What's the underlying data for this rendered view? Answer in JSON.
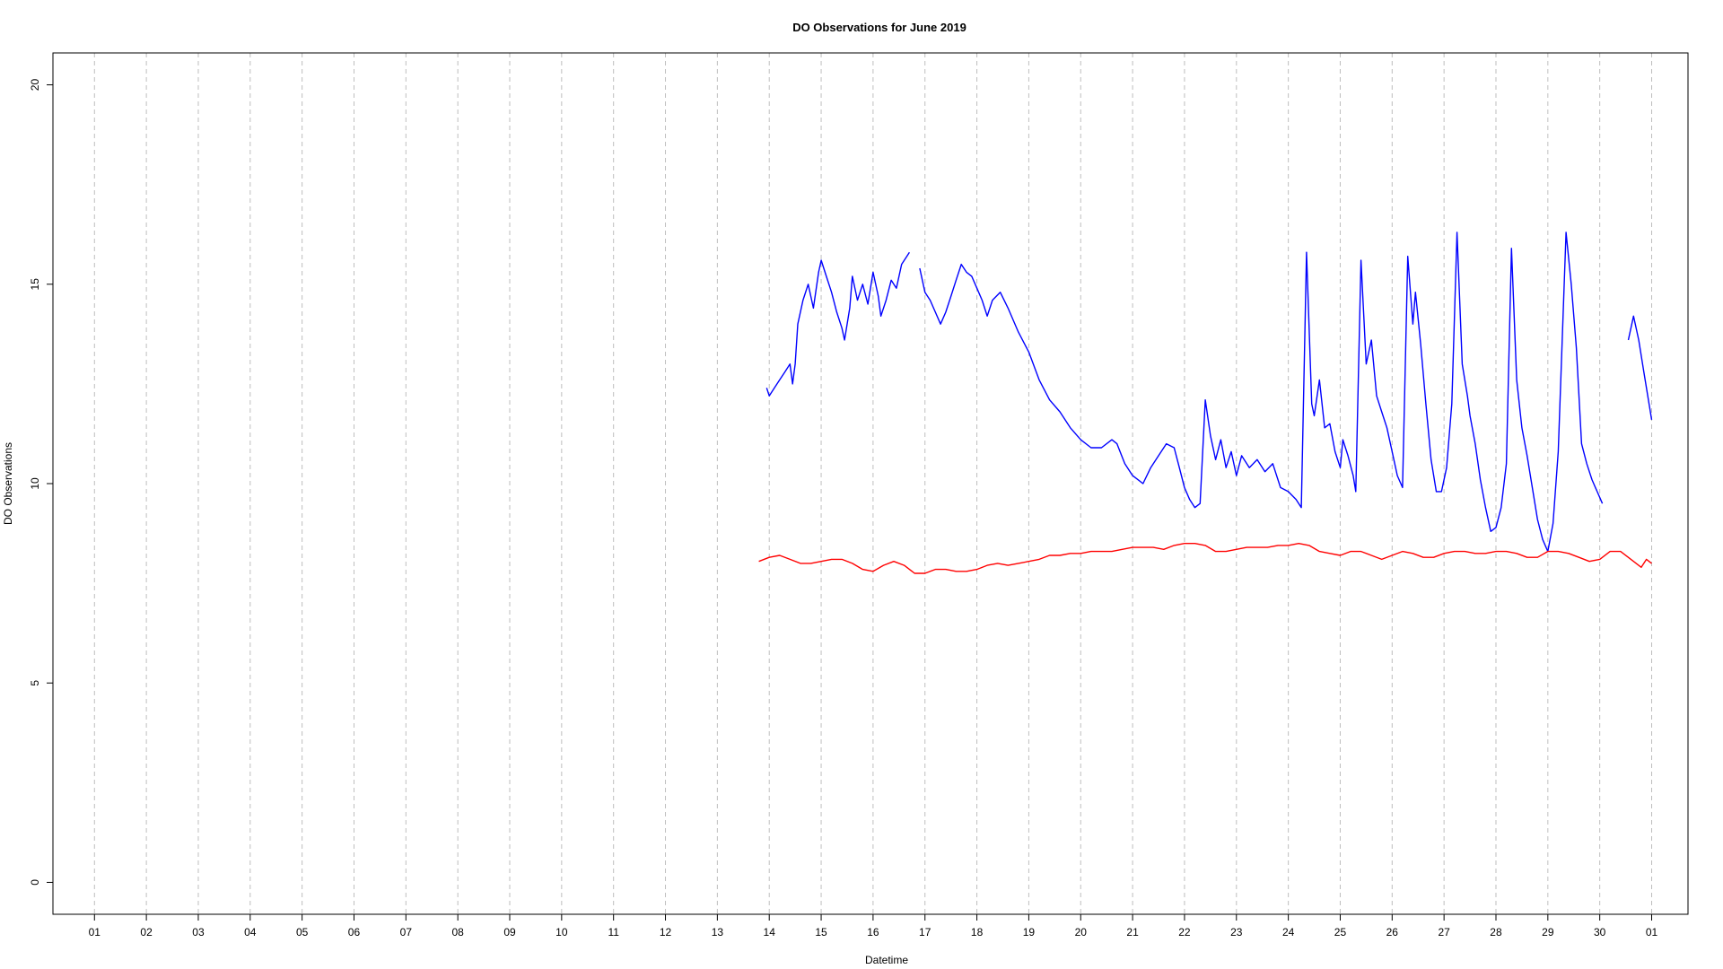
{
  "chart_data": {
    "type": "line",
    "title": "DO Observations for June 2019",
    "xlabel": "Datetime",
    "ylabel": "DO Observations",
    "xlim": [
      0.2,
      31.7
    ],
    "ylim": [
      -0.8,
      20.8
    ],
    "x_unit": "day of June 2019 (31 = 01 July)",
    "x_ticks": [
      {
        "x": 1,
        "label": "01"
      },
      {
        "x": 2,
        "label": "02"
      },
      {
        "x": 3,
        "label": "03"
      },
      {
        "x": 4,
        "label": "04"
      },
      {
        "x": 5,
        "label": "05"
      },
      {
        "x": 6,
        "label": "06"
      },
      {
        "x": 7,
        "label": "07"
      },
      {
        "x": 8,
        "label": "08"
      },
      {
        "x": 9,
        "label": "09"
      },
      {
        "x": 10,
        "label": "10"
      },
      {
        "x": 11,
        "label": "11"
      },
      {
        "x": 12,
        "label": "12"
      },
      {
        "x": 13,
        "label": "13"
      },
      {
        "x": 14,
        "label": "14"
      },
      {
        "x": 15,
        "label": "15"
      },
      {
        "x": 16,
        "label": "16"
      },
      {
        "x": 17,
        "label": "17"
      },
      {
        "x": 18,
        "label": "18"
      },
      {
        "x": 19,
        "label": "19"
      },
      {
        "x": 20,
        "label": "20"
      },
      {
        "x": 21,
        "label": "21"
      },
      {
        "x": 22,
        "label": "22"
      },
      {
        "x": 23,
        "label": "23"
      },
      {
        "x": 24,
        "label": "24"
      },
      {
        "x": 25,
        "label": "25"
      },
      {
        "x": 26,
        "label": "26"
      },
      {
        "x": 27,
        "label": "27"
      },
      {
        "x": 28,
        "label": "28"
      },
      {
        "x": 29,
        "label": "29"
      },
      {
        "x": 30,
        "label": "30"
      },
      {
        "x": 31,
        "label": "01"
      }
    ],
    "y_ticks": [
      {
        "y": 0,
        "label": "0"
      },
      {
        "y": 5,
        "label": "5"
      },
      {
        "y": 10,
        "label": "10"
      },
      {
        "y": 15,
        "label": "15"
      },
      {
        "y": 20,
        "label": "20"
      }
    ],
    "grid": "vertical dashed at each day",
    "series": [
      {
        "color": "#0000ff",
        "segments": [
          [
            [
              13.95,
              12.4
            ],
            [
              14.0,
              12.2
            ],
            [
              14.1,
              12.4
            ],
            [
              14.2,
              12.6
            ],
            [
              14.3,
              12.8
            ],
            [
              14.4,
              13.0
            ],
            [
              14.45,
              12.5
            ],
            [
              14.5,
              13.0
            ],
            [
              14.55,
              14.0
            ],
            [
              14.65,
              14.6
            ],
            [
              14.75,
              15.0
            ],
            [
              14.85,
              14.4
            ],
            [
              14.95,
              15.3
            ],
            [
              15.0,
              15.6
            ],
            [
              15.1,
              15.2
            ],
            [
              15.2,
              14.8
            ],
            [
              15.3,
              14.3
            ],
            [
              15.4,
              13.9
            ],
            [
              15.45,
              13.6
            ],
            [
              15.55,
              14.4
            ],
            [
              15.6,
              15.2
            ],
            [
              15.7,
              14.6
            ],
            [
              15.8,
              15.0
            ],
            [
              15.9,
              14.5
            ],
            [
              16.0,
              15.3
            ],
            [
              16.1,
              14.7
            ],
            [
              16.15,
              14.2
            ],
            [
              16.25,
              14.6
            ],
            [
              16.35,
              15.1
            ],
            [
              16.45,
              14.9
            ],
            [
              16.55,
              15.5
            ],
            [
              16.65,
              15.7
            ],
            [
              16.7,
              15.8
            ]
          ],
          [
            [
              16.9,
              15.4
            ],
            [
              17.0,
              14.8
            ],
            [
              17.1,
              14.6
            ],
            [
              17.2,
              14.3
            ],
            [
              17.3,
              14.0
            ],
            [
              17.4,
              14.3
            ],
            [
              17.5,
              14.7
            ],
            [
              17.6,
              15.1
            ],
            [
              17.7,
              15.5
            ],
            [
              17.8,
              15.3
            ],
            [
              17.9,
              15.2
            ],
            [
              18.0,
              14.9
            ],
            [
              18.1,
              14.6
            ],
            [
              18.2,
              14.2
            ],
            [
              18.3,
              14.6
            ],
            [
              18.45,
              14.8
            ],
            [
              18.6,
              14.4
            ],
            [
              18.8,
              13.8
            ],
            [
              19.0,
              13.3
            ],
            [
              19.2,
              12.6
            ],
            [
              19.4,
              12.1
            ],
            [
              19.6,
              11.8
            ],
            [
              19.8,
              11.4
            ],
            [
              20.0,
              11.1
            ],
            [
              20.2,
              10.9
            ],
            [
              20.4,
              10.9
            ],
            [
              20.6,
              11.1
            ],
            [
              20.7,
              11.0
            ],
            [
              20.85,
              10.5
            ],
            [
              21.0,
              10.2
            ],
            [
              21.2,
              10.0
            ],
            [
              21.35,
              10.4
            ],
            [
              21.5,
              10.7
            ],
            [
              21.65,
              11.0
            ],
            [
              21.8,
              10.9
            ],
            [
              21.9,
              10.4
            ],
            [
              22.0,
              9.9
            ],
            [
              22.1,
              9.6
            ],
            [
              22.2,
              9.4
            ],
            [
              22.3,
              9.5
            ],
            [
              22.4,
              12.1
            ],
            [
              22.5,
              11.2
            ],
            [
              22.6,
              10.6
            ],
            [
              22.7,
              11.1
            ],
            [
              22.8,
              10.4
            ],
            [
              22.9,
              10.8
            ],
            [
              23.0,
              10.2
            ],
            [
              23.1,
              10.7
            ],
            [
              23.25,
              10.4
            ],
            [
              23.4,
              10.6
            ],
            [
              23.55,
              10.3
            ],
            [
              23.7,
              10.5
            ],
            [
              23.85,
              9.9
            ],
            [
              24.0,
              9.8
            ],
            [
              24.15,
              9.6
            ],
            [
              24.25,
              9.4
            ],
            [
              24.35,
              15.8
            ],
            [
              24.45,
              12.0
            ],
            [
              24.5,
              11.7
            ],
            [
              24.6,
              12.6
            ],
            [
              24.7,
              11.4
            ],
            [
              24.8,
              11.5
            ],
            [
              24.9,
              10.8
            ],
            [
              25.0,
              10.4
            ],
            [
              25.05,
              11.1
            ],
            [
              25.15,
              10.7
            ],
            [
              25.25,
              10.2
            ],
            [
              25.3,
              9.8
            ],
            [
              25.4,
              15.6
            ],
            [
              25.5,
              13.0
            ],
            [
              25.6,
              13.6
            ],
            [
              25.7,
              12.2
            ],
            [
              25.8,
              11.8
            ],
            [
              25.9,
              11.4
            ],
            [
              26.0,
              10.8
            ],
            [
              26.1,
              10.2
            ],
            [
              26.2,
              9.9
            ],
            [
              26.3,
              15.7
            ],
            [
              26.4,
              14.0
            ],
            [
              26.45,
              14.8
            ],
            [
              26.55,
              13.5
            ],
            [
              26.65,
              12.0
            ],
            [
              26.75,
              10.6
            ],
            [
              26.85,
              9.8
            ],
            [
              26.95,
              9.8
            ],
            [
              27.05,
              10.4
            ],
            [
              27.15,
              12.0
            ],
            [
              27.25,
              16.3
            ],
            [
              27.35,
              13.0
            ],
            [
              27.45,
              12.2
            ],
            [
              27.5,
              11.7
            ],
            [
              27.6,
              11.0
            ],
            [
              27.7,
              10.1
            ],
            [
              27.8,
              9.4
            ],
            [
              27.9,
              8.8
            ],
            [
              28.0,
              8.9
            ],
            [
              28.1,
              9.4
            ],
            [
              28.2,
              10.5
            ],
            [
              28.3,
              15.9
            ],
            [
              28.4,
              12.6
            ],
            [
              28.5,
              11.4
            ],
            [
              28.6,
              10.7
            ],
            [
              28.7,
              9.9
            ],
            [
              28.8,
              9.1
            ],
            [
              28.9,
              8.6
            ],
            [
              29.0,
              8.3
            ],
            [
              29.1,
              9.0
            ],
            [
              29.2,
              10.8
            ],
            [
              29.35,
              16.3
            ],
            [
              29.45,
              15.0
            ],
            [
              29.55,
              13.4
            ],
            [
              29.65,
              11.0
            ],
            [
              29.75,
              10.5
            ],
            [
              29.85,
              10.1
            ],
            [
              29.95,
              9.8
            ],
            [
              30.05,
              9.5
            ]
          ],
          [
            [
              30.55,
              13.6
            ],
            [
              30.65,
              14.2
            ],
            [
              30.75,
              13.6
            ],
            [
              30.85,
              12.8
            ],
            [
              30.95,
              12.0
            ],
            [
              31.0,
              11.6
            ]
          ]
        ]
      },
      {
        "color": "#ff0000",
        "segments": [
          [
            [
              13.8,
              8.05
            ],
            [
              14.0,
              8.15
            ],
            [
              14.2,
              8.2
            ],
            [
              14.4,
              8.1
            ],
            [
              14.6,
              8.0
            ],
            [
              14.8,
              8.0
            ],
            [
              15.0,
              8.05
            ],
            [
              15.2,
              8.1
            ],
            [
              15.4,
              8.1
            ],
            [
              15.6,
              8.0
            ],
            [
              15.8,
              7.85
            ],
            [
              16.0,
              7.8
            ],
            [
              16.2,
              7.95
            ],
            [
              16.4,
              8.05
            ],
            [
              16.6,
              7.95
            ],
            [
              16.8,
              7.75
            ],
            [
              17.0,
              7.75
            ],
            [
              17.2,
              7.85
            ],
            [
              17.4,
              7.85
            ],
            [
              17.6,
              7.8
            ],
            [
              17.8,
              7.8
            ],
            [
              18.0,
              7.85
            ],
            [
              18.2,
              7.95
            ],
            [
              18.4,
              8.0
            ],
            [
              18.6,
              7.95
            ],
            [
              18.8,
              8.0
            ],
            [
              19.0,
              8.05
            ],
            [
              19.2,
              8.1
            ],
            [
              19.4,
              8.2
            ],
            [
              19.6,
              8.2
            ],
            [
              19.8,
              8.25
            ],
            [
              20.0,
              8.25
            ],
            [
              20.2,
              8.3
            ],
            [
              20.4,
              8.3
            ],
            [
              20.6,
              8.3
            ],
            [
              20.8,
              8.35
            ],
            [
              21.0,
              8.4
            ],
            [
              21.2,
              8.4
            ],
            [
              21.4,
              8.4
            ],
            [
              21.6,
              8.35
            ],
            [
              21.8,
              8.45
            ],
            [
              22.0,
              8.5
            ],
            [
              22.2,
              8.5
            ],
            [
              22.4,
              8.45
            ],
            [
              22.6,
              8.3
            ],
            [
              22.8,
              8.3
            ],
            [
              23.0,
              8.35
            ],
            [
              23.2,
              8.4
            ],
            [
              23.4,
              8.4
            ],
            [
              23.6,
              8.4
            ],
            [
              23.8,
              8.45
            ],
            [
              24.0,
              8.45
            ],
            [
              24.2,
              8.5
            ],
            [
              24.4,
              8.45
            ],
            [
              24.6,
              8.3
            ],
            [
              24.8,
              8.25
            ],
            [
              25.0,
              8.2
            ],
            [
              25.2,
              8.3
            ],
            [
              25.4,
              8.3
            ],
            [
              25.6,
              8.2
            ],
            [
              25.8,
              8.1
            ],
            [
              26.0,
              8.2
            ],
            [
              26.2,
              8.3
            ],
            [
              26.4,
              8.25
            ],
            [
              26.6,
              8.15
            ],
            [
              26.8,
              8.15
            ],
            [
              27.0,
              8.25
            ],
            [
              27.2,
              8.3
            ],
            [
              27.4,
              8.3
            ],
            [
              27.6,
              8.25
            ],
            [
              27.8,
              8.25
            ],
            [
              28.0,
              8.3
            ],
            [
              28.2,
              8.3
            ],
            [
              28.4,
              8.25
            ],
            [
              28.6,
              8.15
            ],
            [
              28.8,
              8.15
            ],
            [
              29.0,
              8.3
            ],
            [
              29.2,
              8.3
            ],
            [
              29.4,
              8.25
            ],
            [
              29.6,
              8.15
            ],
            [
              29.8,
              8.05
            ],
            [
              30.0,
              8.1
            ],
            [
              30.2,
              8.3
            ],
            [
              30.4,
              8.3
            ],
            [
              30.6,
              8.1
            ],
            [
              30.8,
              7.9
            ],
            [
              30.9,
              8.1
            ],
            [
              31.0,
              8.0
            ]
          ]
        ]
      }
    ]
  }
}
